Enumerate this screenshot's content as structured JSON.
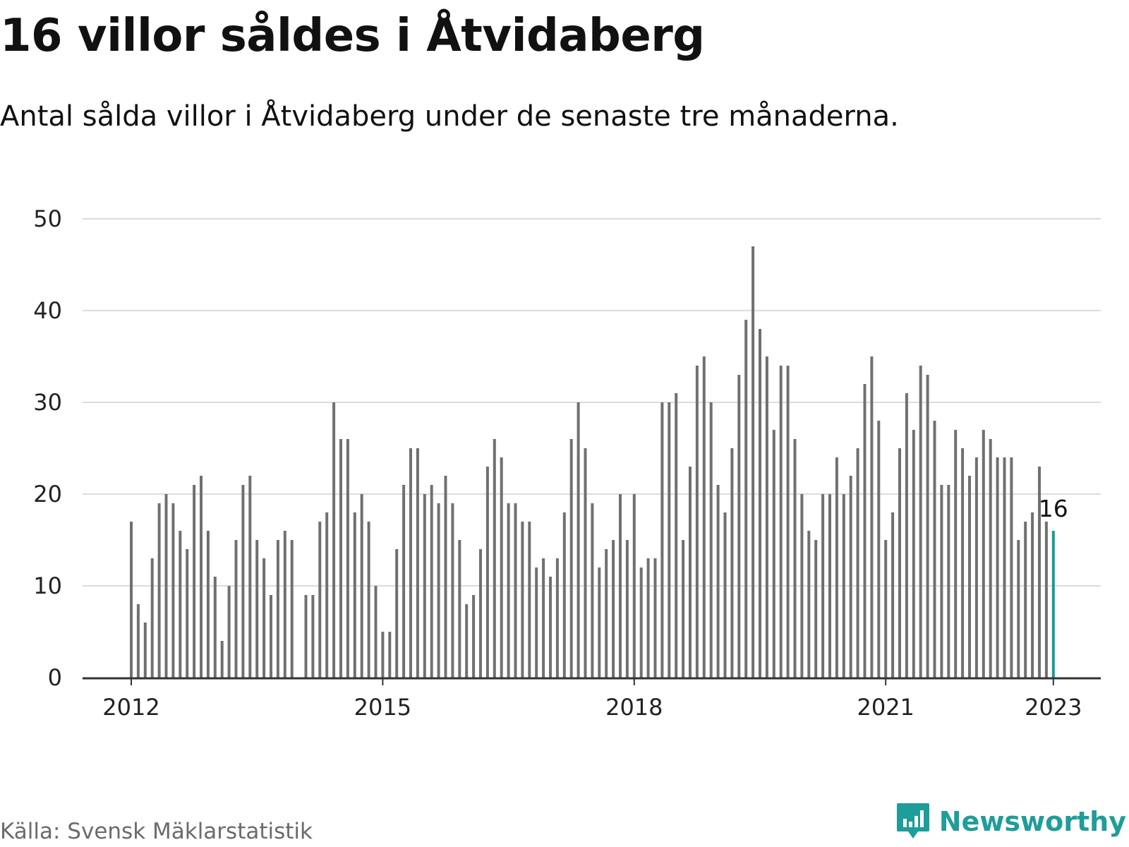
{
  "header": {
    "title": "16 villor såldes i Åtvidaberg",
    "subtitle": "Antal sålda villor i Åtvidaberg under de senaste tre månaderna."
  },
  "footer": {
    "source": "Källa: Svensk Mäklarstatistik",
    "brand": "Newsworthy",
    "brand_icon": "bar-chart-icon"
  },
  "chart_data": {
    "type": "bar",
    "title": "",
    "xlabel": "",
    "ylabel": "",
    "ylim": [
      0,
      50
    ],
    "y_ticks": [
      "0",
      "10",
      "20",
      "30",
      "40",
      "50"
    ],
    "x_ticks": [
      "2012",
      "2015",
      "2018",
      "2021",
      "2023"
    ],
    "grid": true,
    "start": "2012-01",
    "frequency": "monthly",
    "values": [
      17,
      8,
      6,
      13,
      19,
      20,
      19,
      16,
      14,
      21,
      22,
      16,
      11,
      4,
      10,
      15,
      21,
      22,
      15,
      13,
      9,
      15,
      16,
      15,
      null,
      9,
      9,
      17,
      18,
      30,
      26,
      26,
      18,
      20,
      17,
      10,
      5,
      5,
      14,
      21,
      25,
      25,
      20,
      21,
      19,
      22,
      19,
      15,
      8,
      9,
      14,
      23,
      26,
      24,
      19,
      19,
      17,
      17,
      12,
      13,
      11,
      13,
      18,
      26,
      30,
      25,
      19,
      12,
      14,
      15,
      20,
      15,
      20,
      12,
      13,
      13,
      30,
      30,
      31,
      15,
      23,
      34,
      35,
      30,
      21,
      18,
      25,
      33,
      39,
      47,
      38,
      35,
      27,
      34,
      34,
      26,
      20,
      16,
      15,
      20,
      20,
      24,
      20,
      22,
      25,
      32,
      35,
      28,
      15,
      18,
      25,
      31,
      27,
      34,
      33,
      28,
      21,
      21,
      27,
      25,
      22,
      24,
      27,
      26,
      24,
      24,
      24,
      15,
      17,
      18,
      23,
      17,
      16
    ],
    "highlight": {
      "label": "16",
      "color": "#1a9a97"
    },
    "bar_color": "#707070"
  }
}
